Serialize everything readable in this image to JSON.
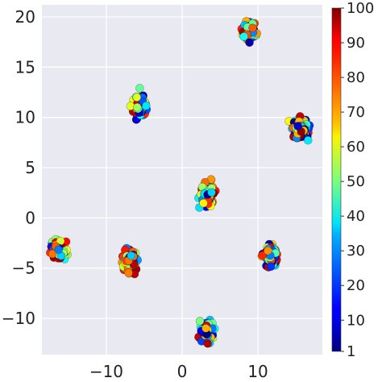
{
  "chart_data": {
    "type": "scatter",
    "title": "",
    "xlabel": "",
    "ylabel": "",
    "xlim": [
      -18.5,
      18.5
    ],
    "ylim": [
      -13.6,
      21.2
    ],
    "grid": true,
    "background": "#e8e9f1",
    "grid_color": "#ffffff",
    "colormap": "jet",
    "xticks": [
      -10,
      0,
      10
    ],
    "yticks": [
      -10,
      -5,
      0,
      5,
      10,
      15,
      20
    ],
    "colorbar": {
      "label": "",
      "range": [
        1,
        100
      ],
      "ticks": [
        1,
        10,
        20,
        30,
        40,
        50,
        60,
        70,
        80,
        90,
        100
      ]
    },
    "clusters": [
      {
        "x": 8.8,
        "y": 18.6
      },
      {
        "x": -5.5,
        "y": 11.0
      },
      {
        "x": 15.6,
        "y": 9.0
      },
      {
        "x": 3.3,
        "y": 2.3
      },
      {
        "x": -16.4,
        "y": -3.1
      },
      {
        "x": -6.9,
        "y": -4.1
      },
      {
        "x": 11.6,
        "y": -3.8
      },
      {
        "x": 3.3,
        "y": -11.3
      }
    ],
    "points_per_cluster": 100,
    "cluster_spread": 0.5
  }
}
